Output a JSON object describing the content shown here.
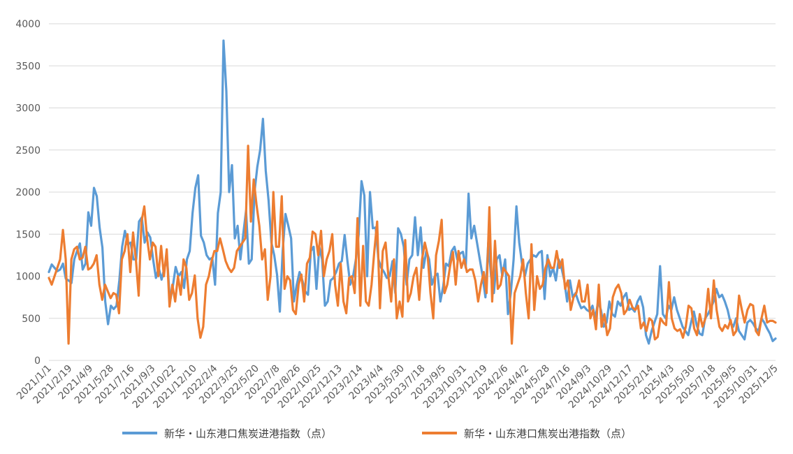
{
  "chart_data": {
    "type": "line",
    "title": "",
    "xlabel": "",
    "ylabel": "",
    "ylim": [
      0,
      4000
    ],
    "yticks": [
      0,
      500,
      1000,
      1500,
      2000,
      2500,
      3000,
      3500,
      4000
    ],
    "grid": "horizontal",
    "legend_position": "bottom",
    "x_tick_labels": [
      "2021/1/1",
      "2021/2/19",
      "2021/4/9",
      "2021/5/28",
      "2021/7/16",
      "2021/9/3",
      "2021/10/22",
      "2021/12/10",
      "2022/2/4",
      "2022/3/25",
      "2022/5/20",
      "2022/7/8",
      "2022/8/26",
      "2022/10/25",
      "2022/12/13",
      "2023/2/14",
      "2023/4/4",
      "2023/5/30",
      "2023/7/18",
      "2023/9/5",
      "2023/10/31",
      "2023/12/19",
      "2024/2/6",
      "2024/4/2",
      "2024/5/28",
      "2024/7/16",
      "2024/9/3",
      "2024/10/29",
      "2024/12/17",
      "2025/2/14",
      "2025/4/3",
      "2025/5/30",
      "2025/7/18",
      "2025/9/5",
      "2025/10/31",
      "2025/12/5"
    ],
    "series": [
      {
        "name": "新华・山东港口焦炭进港指数（点）",
        "color": "#5B9BD5",
        "values": [
          1050,
          1140,
          1100,
          1060,
          1080,
          1150,
          970,
          950,
          920,
          1200,
          1300,
          1390,
          1080,
          1150,
          1760,
          1600,
          2050,
          1950,
          1580,
          1340,
          700,
          430,
          650,
          610,
          650,
          950,
          1350,
          1540,
          1380,
          1400,
          1200,
          1200,
          1650,
          1700,
          1400,
          1520,
          1460,
          1200,
          980,
          1100,
          960,
          1100,
          1200,
          700,
          880,
          1110,
          1000,
          1050,
          860,
          1200,
          1300,
          1750,
          2050,
          2200,
          1480,
          1400,
          1250,
          1200,
          1220,
          900,
          1750,
          2000,
          3800,
          3200,
          2000,
          2320,
          1450,
          1600,
          1200,
          1500,
          1780,
          1150,
          1200,
          2000,
          2300,
          2500,
          2870,
          2250,
          1900,
          1400,
          1250,
          1020,
          580,
          1300,
          1740,
          1600,
          1450,
          700,
          900,
          1050,
          950,
          820,
          780,
          1300,
          1350,
          850,
          1350,
          1200,
          650,
          700,
          950,
          980,
          1050,
          1150,
          1180,
          1490,
          1180,
          900,
          1000,
          1200,
          1500,
          2130,
          1960,
          1000,
          2000,
          1570,
          1580,
          1200,
          1100,
          1050,
          980,
          1000,
          1180,
          800,
          1570,
          1500,
          1350,
          900,
          1200,
          1250,
          1700,
          1250,
          1580,
          1100,
          1300,
          1200,
          900,
          1000,
          1030,
          700,
          880,
          1150,
          1120,
          1300,
          1350,
          1200,
          1270,
          1290,
          1100,
          1980,
          1450,
          1600,
          1400,
          1200,
          1000,
          750,
          1400,
          1000,
          800,
          1200,
          1250,
          1000,
          1200,
          550,
          800,
          1200,
          1830,
          1400,
          1150,
          1000,
          1150,
          1200,
          1250,
          1230,
          1280,
          1300,
          730,
          1250,
          1000,
          1100,
          950,
          1200,
          1100,
          950,
          700,
          950,
          750,
          800,
          700,
          620,
          640,
          600,
          580,
          650,
          500,
          700,
          600,
          400,
          450,
          700,
          550,
          520,
          700,
          650,
          750,
          800,
          600,
          620,
          580,
          700,
          760,
          630,
          300,
          200,
          350,
          450,
          550,
          1120,
          550,
          500,
          650,
          600,
          750,
          600,
          500,
          400,
          350,
          300,
          450,
          580,
          420,
          320,
          300,
          500,
          550,
          620,
          700,
          850,
          750,
          780,
          700,
          600,
          450,
          400,
          500,
          350,
          300,
          250,
          450,
          480,
          440,
          380,
          350,
          500,
          450,
          380,
          320,
          230,
          260
        ]
      },
      {
        "name": "新华・山东港口焦炭出港指数（点）",
        "color": "#ED7D31",
        "values": [
          980,
          900,
          1000,
          1100,
          1200,
          1550,
          1200,
          200,
          1200,
          1320,
          1350,
          1200,
          1220,
          1350,
          1080,
          1100,
          1150,
          1250,
          900,
          720,
          900,
          820,
          740,
          800,
          780,
          560,
          1200,
          1300,
          1500,
          1050,
          1520,
          1200,
          770,
          1650,
          1830,
          1450,
          1200,
          1400,
          1350,
          1000,
          1360,
          1000,
          1320,
          640,
          900,
          700,
          1000,
          780,
          1200,
          1100,
          720,
          800,
          1010,
          500,
          270,
          400,
          900,
          1000,
          1180,
          1300,
          1300,
          1450,
          1320,
          1180,
          1100,
          1050,
          1100,
          1300,
          1350,
          1400,
          1450,
          2550,
          1650,
          2150,
          1850,
          1600,
          1200,
          1320,
          720,
          1000,
          2000,
          1350,
          1350,
          1950,
          850,
          1000,
          950,
          600,
          550,
          900,
          1020,
          700,
          1150,
          1220,
          1530,
          1500,
          1250,
          1540,
          1000,
          1200,
          1300,
          1500,
          900,
          650,
          1150,
          700,
          560,
          980,
          1000,
          800,
          1690,
          650,
          1360,
          700,
          650,
          900,
          1300,
          1650,
          620,
          1300,
          1400,
          1000,
          700,
          1200,
          500,
          700,
          520,
          1430,
          700,
          800,
          1000,
          1100,
          720,
          1200,
          1400,
          1250,
          800,
          500,
          1250,
          1420,
          1670,
          800,
          900,
          1120,
          1290,
          900,
          1300,
          1100,
          1200,
          1050,
          1080,
          1080,
          950,
          700,
          900,
          1050,
          800,
          1820,
          700,
          1420,
          850,
          900,
          1100,
          1050,
          1000,
          200,
          800,
          900,
          1000,
          1200,
          800,
          500,
          1380,
          600,
          1000,
          850,
          900,
          1100,
          1200,
          1100,
          1100,
          1300,
          1100,
          1200,
          850,
          950,
          600,
          750,
          800,
          950,
          700,
          700,
          900,
          500,
          600,
          370,
          900,
          400,
          550,
          300,
          380,
          750,
          850,
          900,
          800,
          550,
          600,
          720,
          630,
          600,
          650,
          380,
          450,
          350,
          500,
          470,
          250,
          280,
          500,
          450,
          420,
          930,
          500,
          380,
          350,
          370,
          270,
          400,
          650,
          620,
          380,
          300,
          550,
          400,
          500,
          850,
          500,
          950,
          600,
          400,
          350,
          420,
          380,
          480,
          300,
          350,
          770,
          600,
          450,
          600,
          670,
          650,
          350,
          300,
          500,
          650,
          450,
          470,
          470,
          450
        ]
      }
    ]
  }
}
